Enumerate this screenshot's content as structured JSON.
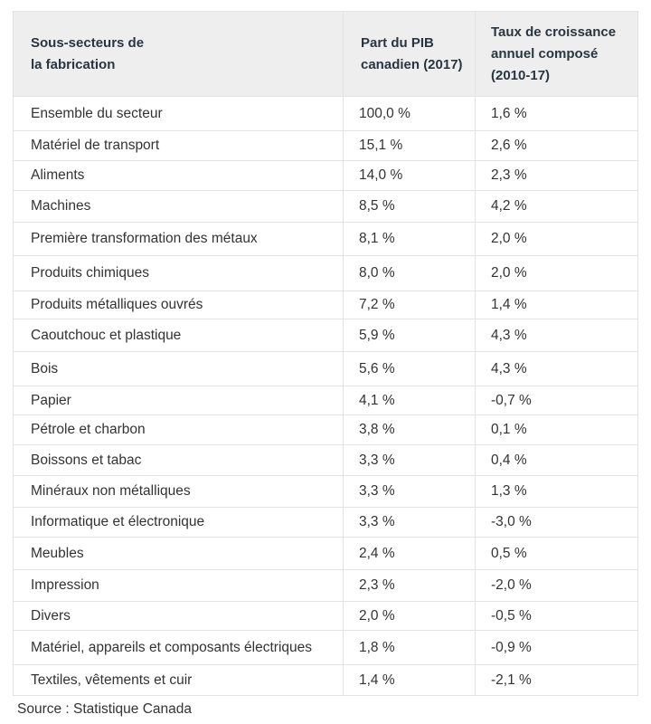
{
  "table": {
    "headers": {
      "col1_line1": "Sous-secteurs de",
      "col1_line2": "la fabrication",
      "col2_line1": "Part du PIB",
      "col2_line2": "canadien (2017)",
      "col3_line1": "Taux de croissance",
      "col3_line2": "annuel composé",
      "col3_line3": "(2010-17)"
    },
    "rows": [
      {
        "sector": "Ensemble du secteur",
        "share": "100,0 %",
        "growth": "1,6 %"
      },
      {
        "sector": "Matériel de transport",
        "share": "15,1 %",
        "growth": "2,6 %"
      },
      {
        "sector": "Aliments",
        "share": "14,0 %",
        "growth": "2,3 %"
      },
      {
        "sector": "Machines",
        "share": "8,5 %",
        "growth": "4,2 %"
      },
      {
        "sector": "Première transformation des métaux",
        "share": "8,1 %",
        "growth": "2,0 %"
      },
      {
        "sector": "Produits chimiques",
        "share": "8,0 %",
        "growth": "2,0 %"
      },
      {
        "sector": "Produits métalliques ouvrés",
        "share": "7,2 %",
        "growth": "1,4 %"
      },
      {
        "sector": "Caoutchouc et plastique",
        "share": "5,9 %",
        "growth": "4,3 %"
      },
      {
        "sector": "Bois",
        "share": "5,6 %",
        "growth": "4,3 %"
      },
      {
        "sector": "Papier",
        "share": "4,1 %",
        "growth": "-0,7 %"
      },
      {
        "sector": "Pétrole et charbon",
        "share": "3,8 %",
        "growth": "0,1 %"
      },
      {
        "sector": "Boissons et tabac",
        "share": "3,3 %",
        "growth": "0,4 %"
      },
      {
        "sector": "Minéraux non métalliques",
        "share": "3,3 %",
        "growth": "1,3 %"
      },
      {
        "sector": "Informatique et électronique",
        "share": "3,3 %",
        "growth": "-3,0 %"
      },
      {
        "sector": "Meubles",
        "share": "2,4 %",
        "growth": "0,5 %"
      },
      {
        "sector": "Impression",
        "share": "2,3 %",
        "growth": "-2,0 %"
      },
      {
        "sector": "Divers",
        "share": "2,0 %",
        "growth": "-0,5 %"
      },
      {
        "sector": "Matériel, appareils et composants électriques",
        "share": "1,8 %",
        "growth": "-0,9 %"
      },
      {
        "sector": "Textiles, vêtements et cuir",
        "share": "1,4 %",
        "growth": "-2,1 %"
      }
    ]
  },
  "source": "Source : Statistique Canada"
}
